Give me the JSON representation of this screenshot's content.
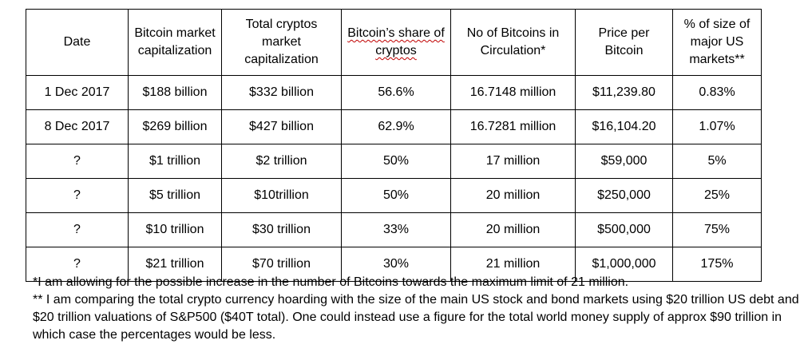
{
  "table": {
    "headers": [
      "Date",
      "Bitcoin market capitalization",
      "Total cryptos market capitalization",
      "Bitcoin’s share of cryptos",
      "No of Bitcoins in Circulation*",
      "Price per Bitcoin",
      "% of size of major US markets**"
    ],
    "rows": [
      [
        "1 Dec 2017",
        "$188 billion",
        "$332 billion",
        "56.6%",
        "16.7148 million",
        "$11,239.80",
        "0.83%"
      ],
      [
        "8 Dec 2017",
        "$269 billion",
        "$427 billion",
        "62.9%",
        "16.7281 million",
        "$16,104.20",
        "1.07%"
      ],
      [
        "?",
        "$1 trillion",
        "$2 trillion",
        "50%",
        "17 million",
        "$59,000",
        "5%"
      ],
      [
        "?",
        "$5 trillion",
        "$10trillion",
        "50%",
        "20 million",
        "$250,000",
        "25%"
      ],
      [
        "?",
        "$10 trillion",
        "$30 trillion",
        "33%",
        "20 million",
        "$500,000",
        "75%"
      ],
      [
        "?",
        "$21 trillion",
        "$70 trillion",
        "30%",
        "21 million",
        "$1,000,000",
        "175%"
      ]
    ]
  },
  "footnotes": [
    "*I am allowing for the possible increase in the number of Bitcoins towards the maximum limit of 21 million.",
    "** I am comparing the total crypto currency hoarding with the size of the main US stock and bond markets using $20 trillion US debt and $20 trillion valuations of S&P500 ($40T total). One could instead use a figure for the total world money supply of approx $90 trillion in which case the percentages would be less."
  ],
  "colors": {
    "border": "#000000",
    "text": "#000000",
    "spellcheck_underline": "#c00000",
    "background": "#ffffff"
  }
}
